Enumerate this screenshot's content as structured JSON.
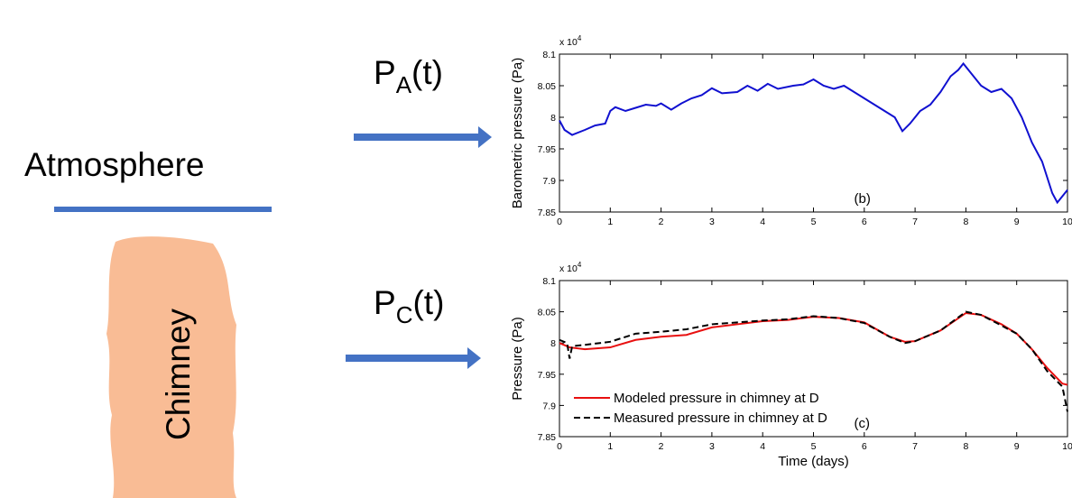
{
  "diagram": {
    "atmosphere": "Atmosphere",
    "chimney": "Chimney",
    "pa": {
      "base": "P",
      "sub": "A",
      "suffix": "(t)"
    },
    "pc": {
      "base": "P",
      "sub": "C",
      "suffix": "(t)"
    }
  },
  "chart_data": [
    {
      "type": "line",
      "ylabel": "Barometric pressure (Pa)",
      "multiplier": {
        "base": "x 10",
        "exponent": "4"
      },
      "panel_label": "(b)",
      "xlim": [
        0,
        10
      ],
      "ylim": [
        7.85,
        8.1
      ],
      "xticks": [
        0,
        1,
        2,
        3,
        4,
        5,
        6,
        7,
        8,
        9,
        10
      ],
      "yticks": [
        7.85,
        7.9,
        7.95,
        8,
        8.05,
        8.1
      ],
      "grid": false,
      "series": [
        {
          "color": "#1010d0",
          "style": "solid",
          "x": [
            0,
            0.1,
            0.25,
            0.5,
            0.7,
            0.9,
            1.0,
            1.1,
            1.3,
            1.5,
            1.7,
            1.9,
            2.0,
            2.2,
            2.4,
            2.6,
            2.8,
            3.0,
            3.2,
            3.5,
            3.7,
            3.9,
            4.1,
            4.3,
            4.6,
            4.8,
            5.0,
            5.2,
            5.4,
            5.6,
            5.8,
            6.0,
            6.2,
            6.4,
            6.6,
            6.75,
            6.9,
            7.1,
            7.3,
            7.5,
            7.7,
            7.85,
            7.95,
            8.1,
            8.3,
            8.5,
            8.7,
            8.9,
            9.1,
            9.3,
            9.5,
            9.7,
            9.8,
            9.9,
            10.0
          ],
          "values": [
            7.995,
            7.98,
            7.972,
            7.98,
            7.987,
            7.99,
            8.01,
            8.016,
            8.01,
            8.015,
            8.02,
            8.018,
            8.022,
            8.012,
            8.022,
            8.03,
            8.035,
            8.046,
            8.038,
            8.04,
            8.05,
            8.042,
            8.053,
            8.045,
            8.05,
            8.052,
            8.06,
            8.05,
            8.045,
            8.05,
            8.04,
            8.03,
            8.02,
            8.01,
            8.0,
            7.978,
            7.99,
            8.01,
            8.02,
            8.04,
            8.065,
            8.075,
            8.085,
            8.07,
            8.05,
            8.04,
            8.045,
            8.03,
            8.0,
            7.96,
            7.93,
            7.88,
            7.865,
            7.875,
            7.885
          ]
        }
      ]
    },
    {
      "type": "line",
      "ylabel": "Pressure (Pa)",
      "xlabel": "Time (days)",
      "multiplier": {
        "base": "x 10",
        "exponent": "4"
      },
      "panel_label": "(c)",
      "xlim": [
        0,
        10
      ],
      "ylim": [
        7.85,
        8.1
      ],
      "xticks": [
        0,
        1,
        2,
        3,
        4,
        5,
        6,
        7,
        8,
        9,
        10
      ],
      "yticks": [
        7.85,
        7.9,
        7.95,
        8,
        8.05,
        8.1
      ],
      "grid": false,
      "legend": "lower left",
      "series": [
        {
          "name": "Modeled pressure in chimney at D",
          "color": "#e81010",
          "style": "solid",
          "x": [
            0,
            0.2,
            0.5,
            1.0,
            1.5,
            2.0,
            2.5,
            3.0,
            3.5,
            4.0,
            4.5,
            5.0,
            5.5,
            6.0,
            6.5,
            6.8,
            7.0,
            7.5,
            8.0,
            8.3,
            8.7,
            9.0,
            9.3,
            9.6,
            9.9,
            10
          ],
          "values": [
            8.0,
            7.993,
            7.99,
            7.993,
            8.005,
            8.01,
            8.013,
            8.025,
            8.03,
            8.035,
            8.037,
            8.042,
            8.04,
            8.033,
            8.01,
            8.002,
            8.003,
            8.02,
            8.048,
            8.045,
            8.03,
            8.015,
            7.99,
            7.96,
            7.935,
            7.933
          ]
        },
        {
          "name": "Measured pressure in chimney at D",
          "color": "#000000",
          "style": "dashed",
          "x": [
            0,
            0.15,
            0.2,
            0.25,
            0.5,
            1.0,
            1.5,
            2.0,
            2.5,
            3.0,
            3.5,
            4.0,
            4.5,
            5.0,
            5.5,
            6.0,
            6.5,
            6.8,
            7.0,
            7.5,
            8.0,
            8.3,
            8.7,
            9.0,
            9.3,
            9.6,
            9.9,
            10
          ],
          "values": [
            8.005,
            8.0,
            7.975,
            7.995,
            7.997,
            8.002,
            8.015,
            8.018,
            8.022,
            8.03,
            8.033,
            8.036,
            8.038,
            8.043,
            8.04,
            8.032,
            8.01,
            8.0,
            8.003,
            8.02,
            8.05,
            8.045,
            8.028,
            8.015,
            7.99,
            7.955,
            7.93,
            7.89
          ]
        }
      ]
    }
  ]
}
